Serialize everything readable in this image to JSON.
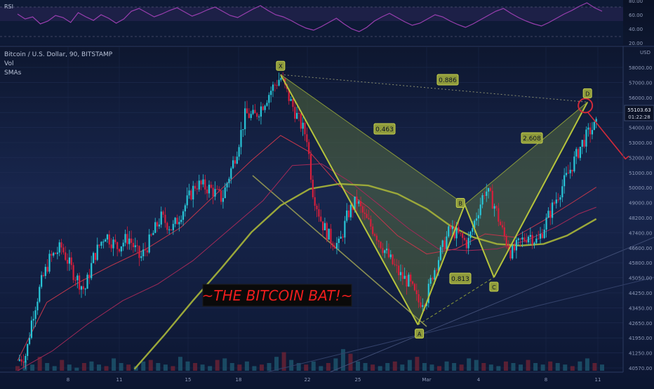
{
  "rsi_panel": {
    "label": "RSI",
    "scale_labels": [
      "80.00",
      "60.00",
      "40.00",
      "20.00"
    ],
    "values": [
      62,
      55,
      58,
      48,
      52,
      60,
      57,
      50,
      64,
      58,
      53,
      61,
      56,
      49,
      55,
      66,
      70,
      64,
      58,
      62,
      67,
      71,
      65,
      59,
      63,
      68,
      72,
      66,
      60,
      57,
      63,
      69,
      74,
      67,
      61,
      58,
      53,
      47,
      42,
      39,
      44,
      50,
      56,
      48,
      41,
      37,
      43,
      52,
      58,
      63,
      57,
      51,
      46,
      49,
      55,
      61,
      58,
      52,
      47,
      43,
      48,
      54,
      60,
      66,
      70,
      63,
      57,
      52,
      48,
      45,
      50,
      56,
      62,
      67,
      73,
      78,
      71,
      66
    ],
    "ylim": [
      20,
      80
    ]
  },
  "main_legend": {
    "symbol": "Bitcoin / U.S. Dollar, 90, BITSTAMP",
    "vol": "Vol",
    "smas": "SMAs"
  },
  "price_axis": {
    "currency": "USD",
    "labels": [
      "58000.00",
      "57000.00",
      "56000.00",
      "55000.00",
      "54000.00",
      "53000.00",
      "52000.00",
      "51000.00",
      "50000.00",
      "49000.00",
      "48200.00",
      "47400.00",
      "46600.00",
      "45800.00",
      "45050.00",
      "44250.00",
      "43450.00",
      "42650.00",
      "41950.00",
      "41250.00",
      "40570.00"
    ],
    "current_price": "55103.63",
    "countdown": "01:22:28"
  },
  "time_axis": {
    "labels": [
      "8",
      "11",
      "15",
      "18",
      "22",
      "25",
      "Mar",
      "4",
      "8",
      "11"
    ]
  },
  "chart_data": {
    "type": "candlestick",
    "title": "Bitcoin / U.S. Dollar, 90, BITSTAMP",
    "ylim": [
      40400,
      59000
    ],
    "x_range": [
      0,
      100
    ],
    "close_path": [
      [
        0,
        41000
      ],
      [
        1.5,
        41400
      ],
      [
        2.5,
        43600
      ],
      [
        4,
        45600
      ],
      [
        5.5,
        47100
      ],
      [
        7.5,
        47800
      ],
      [
        9.5,
        46300
      ],
      [
        11.5,
        45200
      ],
      [
        13,
        47200
      ],
      [
        15,
        48600
      ],
      [
        17,
        47800
      ],
      [
        19,
        48400
      ],
      [
        21,
        47100
      ],
      [
        22.5,
        48100
      ],
      [
        24.5,
        49600
      ],
      [
        26.5,
        48900
      ],
      [
        28.5,
        50200
      ],
      [
        30.5,
        51600
      ],
      [
        33,
        51300
      ],
      [
        35,
        50700
      ],
      [
        37.5,
        53600
      ],
      [
        39,
        55800
      ],
      [
        40.5,
        55600
      ],
      [
        42,
        56400
      ],
      [
        43.5,
        57300
      ],
      [
        45,
        58000
      ],
      [
        46.5,
        56700
      ],
      [
        48,
        55500
      ],
      [
        49.5,
        54400
      ],
      [
        50.5,
        51200
      ],
      [
        52,
        49300
      ],
      [
        53.5,
        48300
      ],
      [
        55,
        47900
      ],
      [
        56.5,
        49800
      ],
      [
        58,
        50600
      ],
      [
        59.5,
        49500
      ],
      [
        61,
        48800
      ],
      [
        62.5,
        47800
      ],
      [
        64,
        46900
      ],
      [
        65.5,
        46100
      ],
      [
        67,
        45700
      ],
      [
        68.5,
        44500
      ],
      [
        70,
        44800
      ],
      [
        71,
        46200
      ],
      [
        72.5,
        47600
      ],
      [
        74,
        48900
      ],
      [
        75.5,
        48500
      ],
      [
        77,
        48000
      ],
      [
        78.5,
        49700
      ],
      [
        80,
        51300
      ],
      [
        81.5,
        50400
      ],
      [
        83,
        48700
      ],
      [
        84.5,
        47400
      ],
      [
        86,
        48100
      ],
      [
        87.5,
        48600
      ],
      [
        89,
        48100
      ],
      [
        90.5,
        49400
      ],
      [
        92,
        50600
      ],
      [
        93.5,
        51700
      ],
      [
        95,
        52800
      ],
      [
        96.5,
        54000
      ],
      [
        98,
        54800
      ],
      [
        99,
        55100
      ]
    ],
    "volume": [
      3,
      6,
      4,
      9,
      5,
      3,
      7,
      4,
      2,
      5,
      6,
      4,
      3,
      8,
      5,
      4,
      3,
      6,
      7,
      5,
      4,
      3,
      9,
      6,
      5,
      4,
      3,
      7,
      8,
      5,
      4,
      6,
      3,
      4,
      5,
      9,
      12,
      7,
      5,
      4,
      6,
      3,
      5,
      8,
      14,
      11,
      6,
      5,
      4,
      3,
      5,
      6,
      4,
      7,
      9,
      5,
      4,
      3,
      6,
      5,
      4,
      8,
      7,
      5,
      4,
      3,
      6,
      5,
      4,
      7,
      5,
      4,
      6,
      5,
      4,
      3,
      6,
      8,
      5,
      4
    ],
    "harmonic_pattern": {
      "name": "Bat",
      "points": [
        {
          "label": "X",
          "x": 45,
          "price": 58150
        },
        {
          "label": "A",
          "x": 68.5,
          "price": 43150
        },
        {
          "label": "B",
          "x": 76.5,
          "price": 50350
        },
        {
          "label": "C",
          "x": 81.5,
          "price": 46000
        },
        {
          "label": "D",
          "x": 97.5,
          "price": 56500
        }
      ],
      "ratios": [
        {
          "label": "0.463",
          "between": "XA-B"
        },
        {
          "label": "0.813",
          "between": "AB-C"
        },
        {
          "label": "2.608",
          "between": "BC-D"
        },
        {
          "label": "0.886",
          "between": "XA-D"
        }
      ]
    },
    "annotation": "~THE BITCOIN BAT!~",
    "sma_fast": [
      [
        0,
        41000
      ],
      [
        5,
        44500
      ],
      [
        10,
        45600
      ],
      [
        16,
        46700
      ],
      [
        22,
        47700
      ],
      [
        28,
        49000
      ],
      [
        34,
        51000
      ],
      [
        40,
        53000
      ],
      [
        45,
        54500
      ],
      [
        50,
        53500
      ],
      [
        55,
        51500
      ],
      [
        60,
        50200
      ],
      [
        65,
        48500
      ],
      [
        70,
        47400
      ],
      [
        75,
        47700
      ],
      [
        80,
        48600
      ],
      [
        85,
        48400
      ],
      [
        90,
        49400
      ],
      [
        95,
        50500
      ],
      [
        99,
        51400
      ]
    ],
    "sma_mid": [
      [
        0,
        40400
      ],
      [
        6,
        41600
      ],
      [
        12,
        43200
      ],
      [
        18,
        44600
      ],
      [
        24,
        45600
      ],
      [
        30,
        47000
      ],
      [
        36,
        48800
      ],
      [
        42,
        50600
      ],
      [
        47,
        52700
      ],
      [
        52,
        52800
      ],
      [
        57,
        51700
      ],
      [
        62,
        50300
      ],
      [
        67,
        48900
      ],
      [
        72,
        47700
      ],
      [
        77,
        47600
      ],
      [
        82,
        47700
      ],
      [
        87,
        48200
      ],
      [
        92,
        49000
      ],
      [
        96,
        49800
      ],
      [
        99,
        50200
      ]
    ],
    "sma_slow": [
      [
        20,
        40500
      ],
      [
        25,
        42500
      ],
      [
        30,
        44600
      ],
      [
        35,
        46600
      ],
      [
        40,
        48700
      ],
      [
        45,
        50300
      ],
      [
        50,
        51300
      ],
      [
        55,
        51600
      ],
      [
        60,
        51500
      ],
      [
        65,
        51000
      ],
      [
        70,
        50100
      ],
      [
        74,
        49100
      ],
      [
        78,
        48400
      ],
      [
        82,
        48000
      ],
      [
        86,
        47900
      ],
      [
        90,
        48000
      ],
      [
        94,
        48500
      ],
      [
        97,
        49100
      ],
      [
        99,
        49500
      ]
    ],
    "projection": {
      "from": [
        97.5,
        56500
      ],
      "to": [
        104,
        53100
      ]
    }
  }
}
